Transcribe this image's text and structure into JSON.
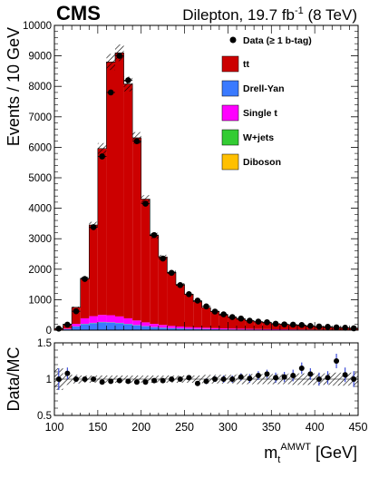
{
  "header": {
    "experiment": "CMS",
    "lumi_prefix": "Dilepton, 19.7 fb",
    "lumi_sup": "-1",
    "lumi_suffix": " (8 TeV)"
  },
  "chart_data": [
    {
      "type": "bar",
      "subtype": "stacked-histogram-with-data-points",
      "x_bin_edges": [
        100,
        110,
        120,
        130,
        140,
        150,
        160,
        170,
        180,
        190,
        200,
        210,
        220,
        230,
        240,
        250,
        260,
        270,
        280,
        290,
        300,
        310,
        320,
        330,
        340,
        350,
        360,
        370,
        380,
        390,
        400,
        410,
        420,
        430,
        440,
        450
      ],
      "xlim": [
        100,
        450
      ],
      "ylim": [
        0,
        10000
      ],
      "ylabel": "Events / 10 GeV",
      "y_ticks": [
        "0",
        "1000",
        "2000",
        "3000",
        "4000",
        "5000",
        "6000",
        "7000",
        "8000",
        "9000",
        "10000"
      ],
      "legend_position": "top-right",
      "legend": [
        {
          "key": "data",
          "label": "Data (≥ 1 b-tag)",
          "marker": "dot",
          "color": "#000000"
        },
        {
          "key": "tt",
          "label": "tt",
          "color": "#cc0000"
        },
        {
          "key": "dy",
          "label": "Drell-Yan",
          "color": "#3a7aff"
        },
        {
          "key": "singlet",
          "label": "Single t",
          "color": "#ff00ff"
        },
        {
          "key": "wjets",
          "label": "W+jets",
          "color": "#33cc33"
        },
        {
          "key": "diboson",
          "label": "Diboson",
          "color": "#ffc000"
        }
      ],
      "series": [
        {
          "key": "dy",
          "name": "Drell-Yan",
          "color": "#3a7aff",
          "values": [
            5,
            30,
            120,
            200,
            230,
            260,
            250,
            230,
            200,
            160,
            130,
            100,
            80,
            65,
            55,
            45,
            40,
            35,
            30,
            25,
            22,
            20,
            18,
            16,
            14,
            12,
            11,
            10,
            9,
            8,
            7,
            6,
            6,
            5,
            5
          ]
        },
        {
          "key": "wjets",
          "name": "W+jets",
          "color": "#33cc33",
          "values": [
            0,
            2,
            3,
            4,
            5,
            5,
            5,
            5,
            4,
            4,
            3,
            3,
            3,
            2,
            2,
            2,
            2,
            2,
            1,
            1,
            1,
            1,
            1,
            1,
            1,
            1,
            1,
            1,
            1,
            1,
            1,
            1,
            1,
            1,
            1
          ]
        },
        {
          "key": "diboson",
          "name": "Diboson",
          "color": "#ffc000",
          "values": [
            0,
            2,
            3,
            4,
            5,
            5,
            5,
            5,
            4,
            4,
            3,
            3,
            3,
            2,
            2,
            2,
            2,
            2,
            1,
            1,
            1,
            1,
            1,
            1,
            1,
            1,
            1,
            1,
            1,
            1,
            1,
            1,
            1,
            1,
            1
          ]
        },
        {
          "key": "singlet",
          "name": "Single t",
          "color": "#ff00ff",
          "values": [
            2,
            20,
            80,
            180,
            220,
            230,
            230,
            210,
            180,
            150,
            120,
            100,
            85,
            70,
            60,
            50,
            45,
            40,
            35,
            30,
            28,
            25,
            22,
            20,
            18,
            16,
            15,
            14,
            12,
            11,
            10,
            9,
            8,
            8,
            7
          ]
        },
        {
          "key": "tt",
          "name": "tt",
          "color": "#cc0000",
          "values": [
            45,
            145,
            545,
            1312,
            2990,
            5460,
            8310,
            8650,
            7690,
            5992,
            4044,
            2894,
            2230,
            1761,
            1381,
            1081,
            851,
            661,
            553,
            440,
            368,
            313,
            268,
            232,
            206,
            180,
            162,
            144,
            127,
            109,
            91,
            83,
            74,
            65,
            56
          ]
        }
      ],
      "data_points": [
        50,
        180,
        620,
        1680,
        3380,
        5700,
        7800,
        9000,
        8200,
        6200,
        4150,
        3120,
        2350,
        1880,
        1480,
        1180,
        970,
        780,
        610,
        520,
        430,
        380,
        310,
        280,
        260,
        210,
        190,
        180,
        170,
        140,
        120,
        110,
        90,
        80,
        60
      ],
      "mc_uncertainty_fraction": 0.03
    },
    {
      "type": "scatter",
      "subtype": "ratio-panel",
      "ylabel": "Data/MC",
      "xlabel_main": "m",
      "xlabel_sub": "t",
      "xlabel_sup": "AMWT",
      "xlabel_unit": " [GeV]",
      "xlim": [
        100,
        450
      ],
      "ylim": [
        0.5,
        1.5
      ],
      "x_ticks": [
        "100",
        "150",
        "200",
        "250",
        "300",
        "350",
        "400",
        "450"
      ],
      "y_ticks": [
        "0.5",
        "1",
        "1.5"
      ],
      "ratio": [
        1.0,
        1.08,
        1.0,
        1.0,
        1.0,
        0.96,
        0.97,
        0.98,
        0.97,
        0.96,
        0.96,
        0.98,
        0.98,
        1.0,
        1.0,
        1.02,
        0.94,
        0.97,
        1.0,
        1.0,
        1.0,
        1.03,
        1.01,
        1.05,
        1.07,
        1.02,
        1.03,
        1.05,
        1.15,
        1.07,
        1.0,
        1.02,
        1.25,
        1.06,
        1.0
      ],
      "ratio_err": [
        0.15,
        0.08,
        0.04,
        0.03,
        0.02,
        0.02,
        0.02,
        0.02,
        0.02,
        0.02,
        0.02,
        0.02,
        0.02,
        0.02,
        0.03,
        0.03,
        0.03,
        0.04,
        0.04,
        0.05,
        0.05,
        0.05,
        0.06,
        0.06,
        0.06,
        0.07,
        0.07,
        0.08,
        0.08,
        0.08,
        0.09,
        0.09,
        0.1,
        0.1,
        0.11
      ],
      "band_halfwidth": [
        0.15,
        0.08,
        0.06,
        0.05,
        0.05,
        0.05,
        0.05,
        0.05,
        0.05,
        0.05,
        0.05,
        0.05,
        0.05,
        0.05,
        0.05,
        0.05,
        0.05,
        0.06,
        0.06,
        0.06,
        0.06,
        0.07,
        0.07,
        0.07,
        0.07,
        0.07,
        0.07,
        0.08,
        0.08,
        0.08,
        0.08,
        0.08,
        0.09,
        0.09,
        0.09
      ]
    }
  ]
}
